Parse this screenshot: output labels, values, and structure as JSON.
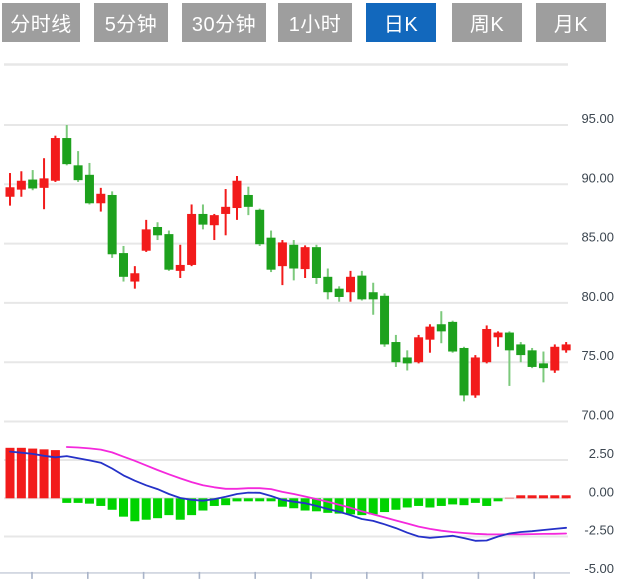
{
  "tabbar": {
    "tabs": [
      {
        "label": "分时线"
      },
      {
        "label": "5分钟"
      },
      {
        "label": "30分钟"
      },
      {
        "label": "1小时"
      },
      {
        "label": "日K"
      },
      {
        "label": "周K"
      },
      {
        "label": "月K"
      }
    ],
    "active_index": 4,
    "active_label": "日K"
  },
  "colors": {
    "tab_bg": "#9e9e9e",
    "tab_active_bg": "#1268bd",
    "tab_text": "#ffffff",
    "up": "#f21b1b",
    "down": "#1da11d",
    "down_wick": "#7cc97c",
    "hist_up": "#f21b1b",
    "hist_down": "#00d300",
    "dif_line": "#2531c8",
    "dea_line": "#f428dc",
    "grid": "#e7e7e7",
    "axis_line": "#cdd3de",
    "tick": "#a9b4c9",
    "axis_text": "#3c4650",
    "background": "#ffffff"
  },
  "chart_data": [
    {
      "type": "candlestick",
      "pane": "price",
      "title": "日K candlestick pane",
      "grid": true,
      "legend": "none",
      "y_axis": {
        "side": "right",
        "tick_labels": [
          "95.00",
          "90.00",
          "85.00",
          "80.00",
          "75.00",
          "70.00"
        ],
        "tick_values": [
          95,
          90,
          85,
          80,
          75,
          70
        ],
        "ylim": [
          68.5,
          97.5
        ]
      },
      "candles_ohlc": [
        [
          88.95,
          90.95,
          88.2,
          89.75
        ],
        [
          89.55,
          91.1,
          88.95,
          90.3
        ],
        [
          90.4,
          91.2,
          89.5,
          89.65
        ],
        [
          89.7,
          92.2,
          87.9,
          90.5
        ],
        [
          90.3,
          94.1,
          90.2,
          93.9
        ],
        [
          93.9,
          95.0,
          91.6,
          91.7
        ],
        [
          91.6,
          92.8,
          90.2,
          90.35
        ],
        [
          90.8,
          91.8,
          88.3,
          88.4
        ],
        [
          88.4,
          89.7,
          87.7,
          89.2
        ],
        [
          89.1,
          89.4,
          83.8,
          84.1
        ],
        [
          84.2,
          84.8,
          81.8,
          82.2
        ],
        [
          81.8,
          83.1,
          81.2,
          82.5
        ],
        [
          84.4,
          87.0,
          84.3,
          86.2
        ],
        [
          86.4,
          86.8,
          85.3,
          85.7
        ],
        [
          85.8,
          86.1,
          82.7,
          82.8
        ],
        [
          82.7,
          84.9,
          82.1,
          83.2
        ],
        [
          83.2,
          88.3,
          83.1,
          87.5
        ],
        [
          87.5,
          88.3,
          86.2,
          86.6
        ],
        [
          86.55,
          87.5,
          85.3,
          87.4
        ],
        [
          87.5,
          89.6,
          85.7,
          88.1
        ],
        [
          88.0,
          90.7,
          87.0,
          90.3
        ],
        [
          89.1,
          89.8,
          87.4,
          88.1
        ],
        [
          87.85,
          87.95,
          84.8,
          84.95
        ],
        [
          85.5,
          86.1,
          82.6,
          82.8
        ],
        [
          83.1,
          85.3,
          81.5,
          85.1
        ],
        [
          84.9,
          85.3,
          81.9,
          82.9
        ],
        [
          82.85,
          84.85,
          82.1,
          84.7
        ],
        [
          84.7,
          84.9,
          81.6,
          82.1
        ],
        [
          82.2,
          82.9,
          80.3,
          80.9
        ],
        [
          81.2,
          81.4,
          80.1,
          80.5
        ],
        [
          80.9,
          82.7,
          80.1,
          82.2
        ],
        [
          82.3,
          82.7,
          80.2,
          80.3
        ],
        [
          80.9,
          81.7,
          79.0,
          80.3
        ],
        [
          80.6,
          80.8,
          76.3,
          76.5
        ],
        [
          76.7,
          77.3,
          74.6,
          75.0
        ],
        [
          75.4,
          76.0,
          74.3,
          74.9
        ],
        [
          75.0,
          77.3,
          74.9,
          77.1
        ],
        [
          76.9,
          78.2,
          75.8,
          78.0
        ],
        [
          78.2,
          79.3,
          76.6,
          77.6
        ],
        [
          78.4,
          78.5,
          75.8,
          75.9
        ],
        [
          76.2,
          76.3,
          71.7,
          72.2
        ],
        [
          72.2,
          75.6,
          72.0,
          75.4
        ],
        [
          75.0,
          78.1,
          74.9,
          77.8
        ],
        [
          77.1,
          77.6,
          76.3,
          77.5
        ],
        [
          77.5,
          77.6,
          73.0,
          76.0
        ],
        [
          76.5,
          76.7,
          75.0,
          75.6
        ],
        [
          76.0,
          76.2,
          74.5,
          74.6
        ],
        [
          74.9,
          75.9,
          73.3,
          74.5
        ],
        [
          74.3,
          76.5,
          74.1,
          76.3
        ],
        [
          76.0,
          76.7,
          75.8,
          76.5
        ]
      ]
    },
    {
      "type": "bar",
      "pane": "macd",
      "title": "MACD pane",
      "grid": true,
      "legend": "none",
      "y_axis": {
        "side": "right",
        "tick_labels": [
          "2.50",
          "0.00",
          "-2.50",
          "-5.00"
        ],
        "tick_values": [
          2.5,
          0,
          -2.5,
          -5
        ],
        "ylim": [
          -5.2,
          3.6
        ]
      },
      "x_axis": {
        "tick_count": 10,
        "tick_labels": []
      },
      "series": [
        {
          "name": "MACD histogram",
          "type": "bar",
          "values": [
            3.3,
            3.3,
            3.25,
            3.2,
            3.15,
            -0.3,
            -0.3,
            -0.35,
            -0.5,
            -0.75,
            -1.2,
            -1.5,
            -1.4,
            -1.3,
            -1.1,
            -1.4,
            -1.1,
            -0.8,
            -0.5,
            -0.45,
            -0.2,
            -0.05,
            -0.05,
            -0.15,
            -0.55,
            -0.65,
            -0.8,
            -0.85,
            -0.95,
            -1.0,
            -1.05,
            -1.1,
            -1.05,
            -0.9,
            -0.75,
            -0.6,
            -0.5,
            -0.6,
            -0.5,
            -0.4,
            -0.45,
            -0.3,
            -0.5,
            -0.15,
            0.03,
            0.08,
            0.08,
            0.1,
            0.1,
            0.12
          ]
        },
        {
          "name": "DIF",
          "type": "line",
          "values": [
            3.05,
            2.98,
            2.9,
            2.78,
            2.68,
            2.76,
            2.62,
            2.48,
            2.33,
            1.95,
            1.5,
            1.15,
            0.85,
            0.6,
            0.28,
            0.02,
            -0.1,
            -0.16,
            -0.05,
            0.1,
            0.28,
            0.37,
            0.36,
            0.15,
            -0.1,
            -0.22,
            -0.32,
            -0.5,
            -0.7,
            -0.88,
            -1.1,
            -1.35,
            -1.48,
            -1.7,
            -1.95,
            -2.25,
            -2.5,
            -2.58,
            -2.52,
            -2.45,
            -2.6,
            -2.78,
            -2.76,
            -2.5,
            -2.3,
            -2.2,
            -2.15,
            -2.07,
            -2.0,
            -1.93
          ]
        },
        {
          "name": "DEA",
          "type": "line",
          "values": [
            null,
            null,
            null,
            null,
            null,
            3.35,
            3.32,
            3.26,
            3.18,
            3.0,
            2.72,
            2.45,
            2.15,
            1.85,
            1.57,
            1.3,
            1.06,
            0.85,
            0.72,
            0.62,
            0.62,
            0.66,
            0.66,
            0.6,
            0.42,
            0.28,
            0.12,
            -0.05,
            -0.22,
            -0.42,
            -0.62,
            -0.85,
            -1.05,
            -1.25,
            -1.45,
            -1.65,
            -1.85,
            -2.0,
            -2.12,
            -2.2,
            -2.27,
            -2.32,
            -2.35,
            -2.36,
            -2.36,
            -2.35,
            -2.34,
            -2.33,
            -2.32,
            -2.3
          ]
        }
      ]
    }
  ]
}
